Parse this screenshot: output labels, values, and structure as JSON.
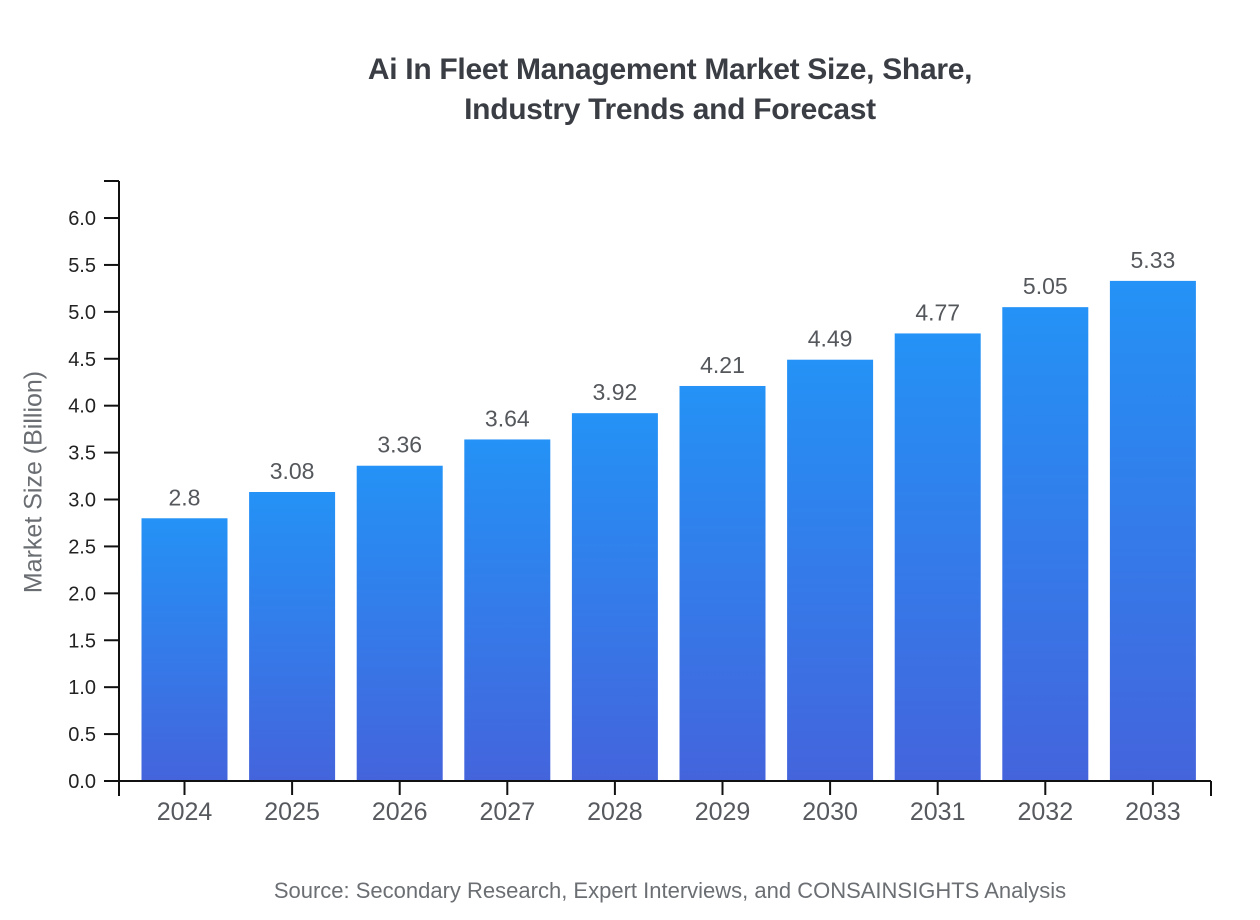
{
  "chart_data": {
    "type": "bar",
    "title": "Ai In Fleet Management Market Size, Share,\nIndustry Trends and Forecast",
    "categories": [
      "2024",
      "2025",
      "2026",
      "2027",
      "2028",
      "2029",
      "2030",
      "2031",
      "2032",
      "2033"
    ],
    "values": [
      2.8,
      3.08,
      3.36,
      3.64,
      3.92,
      4.21,
      4.49,
      4.77,
      5.05,
      5.33
    ],
    "value_labels": [
      "2.8",
      "3.08",
      "3.36",
      "3.64",
      "3.92",
      "4.21",
      "4.49",
      "4.77",
      "5.05",
      "5.33"
    ],
    "xlabel": "",
    "ylabel": "Market Size (Billion)",
    "ylim": [
      0.0,
      6.4
    ],
    "ytick_step": 0.5,
    "ytick_max": 6.0,
    "ytick_format_decimals": 1,
    "grid": false,
    "legend": false,
    "colors": {
      "bar_gradient_top": "#2492f6",
      "bar_gradient_bottom": "#4464dc",
      "axis": "#111111",
      "y_tick_label": "#222222",
      "x_category_label": "#56595e",
      "value_label": "#54575b",
      "title": "#3a3e44",
      "y_axis_title": "#6a6e72"
    }
  },
  "footer": {
    "source": "Source: Secondary Research, Expert Interviews, and CONSAINSIGHTS Analysis",
    "color": "#6b6f73"
  }
}
